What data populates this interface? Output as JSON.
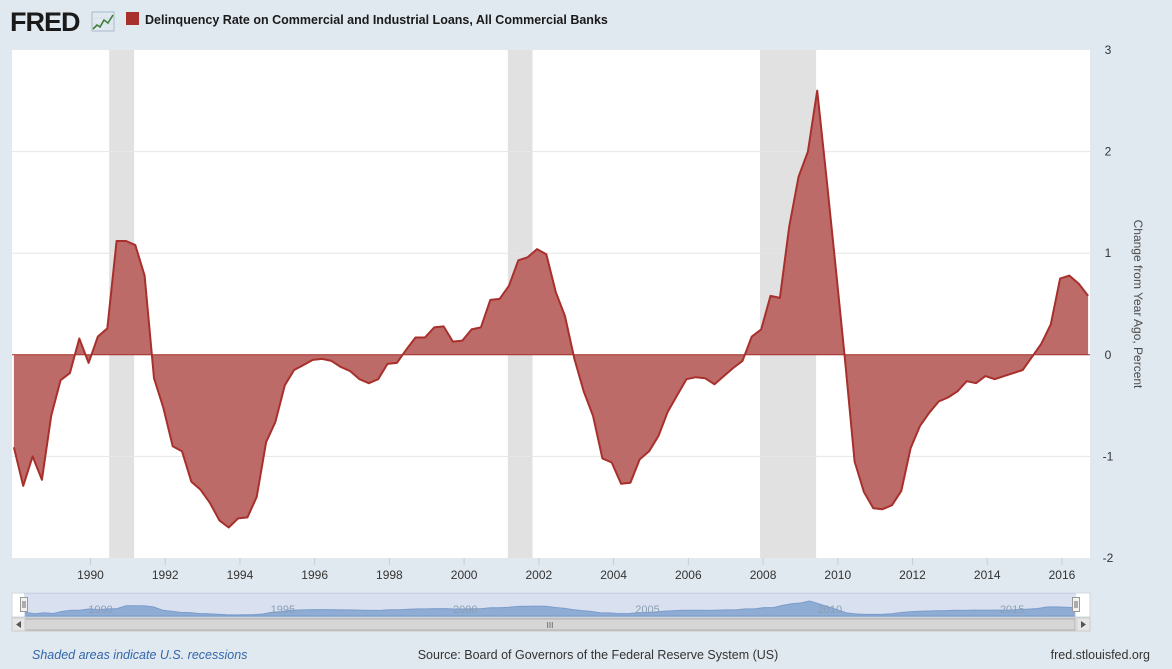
{
  "logo": {
    "text": "FRED"
  },
  "colors": {
    "background": "#e1e9f0",
    "plot_background": "#ffffff",
    "series_fill": "#bd6b69",
    "series_line": "#a8302c",
    "recession": "#e1e1e1",
    "navigator_fill": "#8aaed4",
    "grid": "#e6e6e6"
  },
  "footer": {
    "recession_note": "Shaded areas indicate U.S. recessions",
    "source": "Source: Board of Governors of the Federal Reserve System (US)",
    "site": "fred.stlouisfed.org"
  },
  "navigator": {
    "labels": [
      "1990",
      "1995",
      "2000",
      "2005",
      "2010",
      "2015"
    ],
    "grip": "III"
  },
  "chart_data": {
    "type": "area",
    "title": "",
    "legend": {
      "position": "top-left",
      "entries": [
        "Delinquency Rate on Commercial and Industrial Loans, All Commercial Banks"
      ]
    },
    "xlabel": "",
    "ylabel": "Change from Year Ago, Percent",
    "xlim": [
      1987.9,
      2016.75
    ],
    "ylim": [
      -2,
      3
    ],
    "x_ticks": [
      1990,
      1992,
      1994,
      1996,
      1998,
      2000,
      2002,
      2004,
      2006,
      2008,
      2010,
      2012,
      2014,
      2016
    ],
    "y_ticks": [
      -2,
      -1,
      0,
      1,
      2,
      3
    ],
    "grid": "horizontal",
    "recessions": [
      [
        1990.5,
        1991.17
      ],
      [
        2001.17,
        2001.83
      ],
      [
        2007.92,
        2009.42
      ]
    ],
    "series": [
      {
        "name": "Delinquency Rate on Commercial and Industrial Loans, All Commercial Banks",
        "x": [
          1987.95,
          1988.2,
          1988.45,
          1988.7,
          1988.95,
          1989.2,
          1989.45,
          1989.7,
          1989.95,
          1990.2,
          1990.45,
          1990.7,
          1990.95,
          1991.2,
          1991.45,
          1991.7,
          1991.95,
          1992.2,
          1992.45,
          1992.7,
          1992.95,
          1993.2,
          1993.45,
          1993.7,
          1993.95,
          1994.2,
          1994.45,
          1994.7,
          1994.95,
          1995.2,
          1995.45,
          1995.7,
          1995.95,
          1996.2,
          1996.45,
          1996.7,
          1996.95,
          1997.2,
          1997.45,
          1997.7,
          1997.95,
          1998.2,
          1998.45,
          1998.7,
          1998.95,
          1999.2,
          1999.45,
          1999.7,
          1999.95,
          2000.2,
          2000.45,
          2000.7,
          2000.95,
          2001.2,
          2001.45,
          2001.7,
          2001.95,
          2002.2,
          2002.45,
          2002.7,
          2002.95,
          2003.2,
          2003.45,
          2003.7,
          2003.95,
          2004.2,
          2004.45,
          2004.7,
          2004.95,
          2005.2,
          2005.45,
          2005.7,
          2005.95,
          2006.2,
          2006.45,
          2006.7,
          2006.95,
          2007.2,
          2007.45,
          2007.7,
          2007.95,
          2008.2,
          2008.45,
          2008.7,
          2008.95,
          2009.2,
          2009.45,
          2009.7,
          2009.95,
          2010.2,
          2010.45,
          2010.7,
          2010.95,
          2011.2,
          2011.45,
          2011.7,
          2011.95,
          2012.2,
          2012.45,
          2012.7,
          2012.95,
          2013.2,
          2013.45,
          2013.7,
          2013.95,
          2014.2,
          2014.45,
          2014.7,
          2014.95,
          2015.2,
          2015.45,
          2015.7,
          2015.95,
          2016.2,
          2016.45,
          2016.7
        ],
        "values": [
          -0.91,
          -1.29,
          -1.0,
          -1.23,
          -0.6,
          -0.25,
          -0.18,
          0.16,
          -0.08,
          0.18,
          0.26,
          1.12,
          1.12,
          1.08,
          0.78,
          -0.23,
          -0.52,
          -0.9,
          -0.95,
          -1.25,
          -1.33,
          -1.46,
          -1.63,
          -1.7,
          -1.61,
          -1.6,
          -1.4,
          -0.86,
          -0.66,
          -0.3,
          -0.15,
          -0.1,
          -0.05,
          -0.04,
          -0.06,
          -0.12,
          -0.16,
          -0.24,
          -0.28,
          -0.24,
          -0.09,
          -0.08,
          0.05,
          0.17,
          0.17,
          0.27,
          0.28,
          0.13,
          0.14,
          0.25,
          0.27,
          0.54,
          0.55,
          0.68,
          0.93,
          0.96,
          1.04,
          0.99,
          0.62,
          0.38,
          -0.04,
          -0.36,
          -0.6,
          -1.02,
          -1.06,
          -1.27,
          -1.26,
          -1.03,
          -0.95,
          -0.8,
          -0.56,
          -0.4,
          -0.24,
          -0.22,
          -0.23,
          -0.29,
          -0.21,
          -0.13,
          -0.06,
          0.18,
          0.25,
          0.58,
          0.56,
          1.26,
          1.75,
          2.0,
          2.6,
          1.73,
          0.84,
          -0.08,
          -1.05,
          -1.35,
          -1.51,
          -1.52,
          -1.48,
          -1.34,
          -0.92,
          -0.7,
          -0.57,
          -0.46,
          -0.42,
          -0.36,
          -0.26,
          -0.28,
          -0.21,
          -0.24,
          -0.21,
          -0.18,
          -0.15,
          -0.02,
          0.11,
          0.3,
          0.75,
          0.78,
          0.7,
          0.58
        ]
      }
    ]
  }
}
